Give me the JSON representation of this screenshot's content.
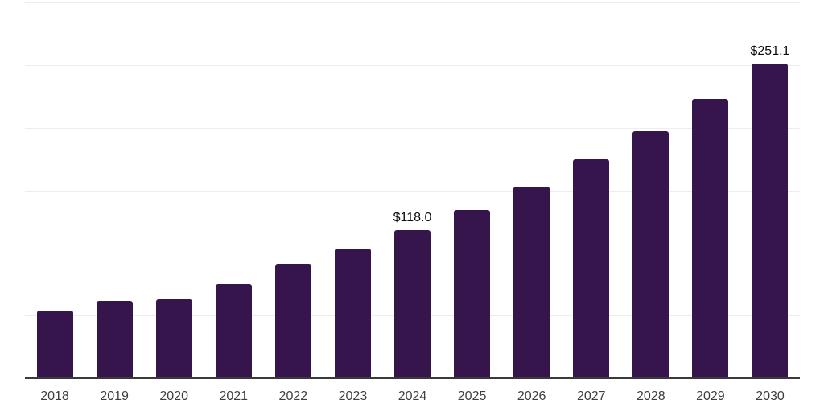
{
  "chart_data": {
    "type": "bar",
    "categories": [
      "2018",
      "2019",
      "2020",
      "2021",
      "2022",
      "2023",
      "2024",
      "2025",
      "2026",
      "2027",
      "2028",
      "2029",
      "2030"
    ],
    "values": [
      53.7,
      61.8,
      63.2,
      75.4,
      91.2,
      103.7,
      118.0,
      134.3,
      153.0,
      174.8,
      197.3,
      223.1,
      251.1
    ],
    "data_labels": {
      "2024": "$118.0",
      "2030": "$251.1"
    },
    "title": "",
    "xlabel": "",
    "ylabel": "",
    "ylim": [
      0,
      300
    ],
    "grid_step": 50,
    "grid": true,
    "legend": false,
    "bar_color": "#36154D",
    "gridline_color": "#ededed",
    "axis_line_color": "#3a3a3a",
    "data_label_color": "#0d0d0d",
    "tick_label_color": "#3d3d3d"
  }
}
